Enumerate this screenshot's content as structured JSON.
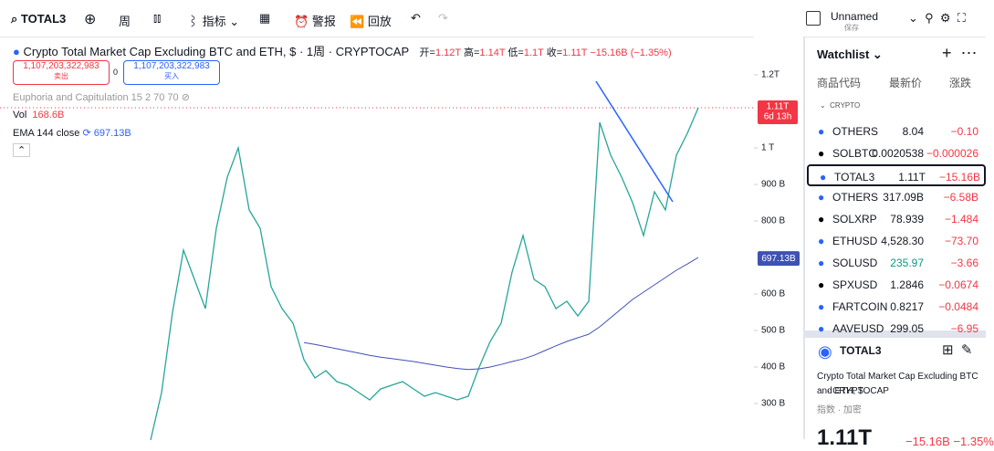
{
  "toolbar": {
    "symbol": "TOTAL3",
    "interval": "周",
    "indicators": "指标",
    "alert": "警报",
    "replay": "回放",
    "layout_name": "Unnamed",
    "save": "保存"
  },
  "legend": {
    "title": "Crypto Total Market Cap Excluding BTC and ETH, $ · 1周 · CRYPTOCAP",
    "open_label": "开=",
    "open": "1.12T",
    "high_label": "高=",
    "high": "1.14T",
    "low_label": "低=",
    "low": "1.1T",
    "close_label": "收=",
    "close": "1.11T",
    "change": "−15.16B (−1.35%)",
    "sell_price": "1,107,203,322,983",
    "sell": "卖出",
    "spread": "0",
    "buy_price": "1,107,203,322,983",
    "buy": "买入",
    "euphoria": "Euphoria and Capitulation 15 2 70 70",
    "vol_label": "Vol",
    "vol": "168.6B",
    "ema_label": "EMA 144 close",
    "ema": "697.13B"
  },
  "chart_data": {
    "type": "line",
    "x": [
      0,
      1,
      2,
      3,
      4,
      5,
      6,
      7,
      8,
      9,
      10,
      11,
      12,
      13,
      14,
      15,
      16,
      17,
      18,
      19,
      20,
      21,
      22,
      23,
      24,
      25,
      26,
      27,
      28,
      29,
      30,
      31,
      32,
      33,
      34,
      35,
      36,
      37,
      38,
      39,
      40,
      41,
      42,
      43,
      44,
      45,
      46,
      47,
      48,
      49,
      50
    ],
    "series": [
      {
        "color": "#26a69a",
        "values": [
          200,
          330,
          550,
          720,
          640,
          560,
          780,
          920,
          1000,
          830,
          780,
          620,
          560,
          520,
          420,
          370,
          390,
          360,
          350,
          330,
          310,
          340,
          350,
          360,
          340,
          320,
          330,
          320,
          310,
          320,
          400,
          470,
          520,
          660,
          760,
          640,
          620,
          560,
          580,
          540,
          580,
          1070,
          980,
          920,
          850,
          760,
          880,
          830,
          980,
          1040,
          1110
        ]
      },
      {
        "color": "#3f51b5",
        "values": [
          null,
          null,
          null,
          null,
          null,
          null,
          null,
          null,
          null,
          null,
          null,
          null,
          null,
          null,
          467,
          462,
          456,
          450,
          444,
          438,
          432,
          427,
          423,
          419,
          415,
          410,
          405,
          400,
          396,
          393,
          395,
          400,
          407,
          415,
          422,
          432,
          445,
          458,
          470,
          480,
          490,
          510,
          535,
          560,
          585,
          605,
          625,
          645,
          665,
          682,
          700
        ]
      }
    ],
    "xlim": [
      -13.75,
      55.08
    ],
    "ylim": [
      202.5,
      1305
    ],
    "yticks": [
      {
        "value": 300,
        "label": "300 B"
      },
      {
        "value": 400,
        "label": "400 B"
      },
      {
        "value": 500,
        "label": "500 B"
      },
      {
        "value": 600,
        "label": "600 B"
      },
      {
        "value": 800,
        "label": "800 B"
      },
      {
        "value": 900,
        "label": "900 B"
      },
      {
        "value": 1000,
        "label": "1 T"
      },
      {
        "value": 1200,
        "label": "1.2T"
      }
    ],
    "last_label": {
      "value": 1110,
      "label": "1.11T"
    },
    "countdown": "6d 13h",
    "ema_label": {
      "value": 697.13,
      "label": "697.13B"
    }
  },
  "watchlist": {
    "title": "Watchlist",
    "headers": [
      "商品代码",
      "最新价",
      "涨跌"
    ],
    "group": "CRYPTO",
    "rows": [
      [
        "OTHERS",
        "8.04",
        "−0.10"
      ],
      [
        "SOLBTC",
        "0.0020538",
        "−0.000026"
      ],
      [
        "TOTAL3",
        "1.11T",
        "−15.16B"
      ],
      [
        "OTHERS",
        "317.09B",
        "−6.58B"
      ],
      [
        "SOLXRP",
        "78.939",
        "−1.484"
      ],
      [
        "ETHUSD",
        "4,528.30",
        "−73.70"
      ],
      [
        "SOLUSD",
        "235.97",
        "−3.66"
      ],
      [
        "SPXUSD",
        "1.2846",
        "−0.0674"
      ],
      [
        "FARTCOIN",
        "0.8217",
        "−0.0484"
      ],
      [
        "AAVEUSD",
        "299.05",
        "−6.95"
      ]
    ]
  },
  "details": {
    "symbol": "TOTAL3",
    "description": "Crypto Total Market Cap Excluding BTC and ETH, $",
    "exchange": "· CRYPTOCAP",
    "tags": "指数 · 加密",
    "price": "1.11T",
    "change": "−15.16B −1.35%"
  }
}
